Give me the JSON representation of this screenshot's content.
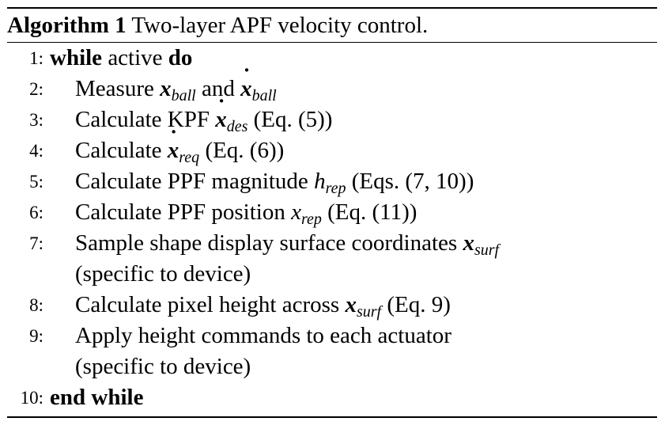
{
  "algorithm": {
    "label": "Algorithm 1",
    "title": "Two-layer APF velocity control.",
    "lines": [
      {
        "num": "1:",
        "parts": [
          {
            "t": "while",
            "c": "kw"
          },
          {
            "t": " active "
          },
          {
            "t": "do",
            "c": "kw"
          }
        ]
      },
      {
        "num": "2:",
        "parts": [
          {
            "t": "Measure "
          },
          {
            "t": "x",
            "c": "mb"
          },
          {
            "t": "ball",
            "c": "sub"
          },
          {
            "t": " and "
          },
          {
            "t": "x",
            "c": "mb dot"
          },
          {
            "t": "ball",
            "c": "sub"
          }
        ]
      },
      {
        "num": "3:",
        "parts": [
          {
            "t": "Calculate KPF "
          },
          {
            "t": "x",
            "c": "mb dot"
          },
          {
            "t": "des",
            "c": "sub"
          },
          {
            "t": " (Eq. (5))"
          }
        ]
      },
      {
        "num": "4:",
        "parts": [
          {
            "t": "Calculate "
          },
          {
            "t": "x",
            "c": "mb dot"
          },
          {
            "t": "req",
            "c": "sub"
          },
          {
            "t": " (Eq. (6))"
          }
        ]
      },
      {
        "num": "5:",
        "parts": [
          {
            "t": "Calculate PPF magnitude "
          },
          {
            "t": "h",
            "c": "m"
          },
          {
            "t": "rep",
            "c": "sub"
          },
          {
            "t": " (Eqs. (7, 10))"
          }
        ]
      },
      {
        "num": "6:",
        "parts": [
          {
            "t": "Calculate PPF position "
          },
          {
            "t": "x",
            "c": "m"
          },
          {
            "t": "rep",
            "c": "sub"
          },
          {
            "t": " (Eq. (11))"
          }
        ]
      },
      {
        "num": "7:",
        "parts": [
          {
            "t": "Sample shape display surface coordinates "
          },
          {
            "t": "x",
            "c": "mb"
          },
          {
            "t": "surf",
            "c": "sub"
          }
        ]
      },
      {
        "num": "",
        "parts": [
          {
            "t": "(specific to device)"
          }
        ]
      },
      {
        "num": "8:",
        "parts": [
          {
            "t": "Calculate pixel height across "
          },
          {
            "t": "x",
            "c": "mb"
          },
          {
            "t": "surf",
            "c": "sub"
          },
          {
            "t": " (Eq. 9)"
          }
        ]
      },
      {
        "num": "9:",
        "parts": [
          {
            "t": "Apply height commands to each actuator"
          }
        ]
      },
      {
        "num": "",
        "parts": [
          {
            "t": "(specific to device)"
          }
        ]
      },
      {
        "num": "10:",
        "parts": [
          {
            "t": "end while",
            "c": "kw"
          }
        ],
        "top": true
      }
    ]
  }
}
